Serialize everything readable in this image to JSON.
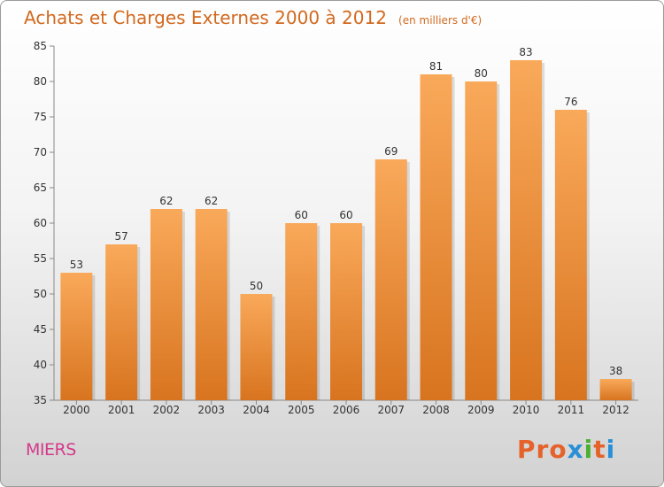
{
  "header": {
    "title": "Achats et Charges Externes 2000 à 2012",
    "unit": "(en milliers d'€)"
  },
  "footer": {
    "commune": "MIERS",
    "logo": "Proxiti"
  },
  "colors": {
    "bar_light": "#f9a95a",
    "bar_dark": "#d8741f",
    "title": "#d2691e",
    "commune": "#d43a8a",
    "logo_letters": [
      "#e5622a",
      "#e5622a",
      "#e5622a",
      "#2a8fd6",
      "#4caf2f",
      "#e5622a",
      "#2a8fd6"
    ]
  },
  "chart_data": {
    "type": "bar",
    "title": "Achats et Charges Externes 2000 à 2012",
    "xlabel": "",
    "ylabel": "",
    "categories": [
      "2000",
      "2001",
      "2002",
      "2003",
      "2004",
      "2005",
      "2006",
      "2007",
      "2008",
      "2009",
      "2010",
      "2011",
      "2012"
    ],
    "values": [
      53,
      57,
      62,
      62,
      50,
      60,
      60,
      69,
      81,
      80,
      83,
      76,
      38
    ],
    "ylim": [
      35,
      85
    ],
    "yticks": [
      35,
      40,
      45,
      50,
      55,
      60,
      65,
      70,
      75,
      80,
      85
    ],
    "grid": false,
    "data_labels": true
  }
}
